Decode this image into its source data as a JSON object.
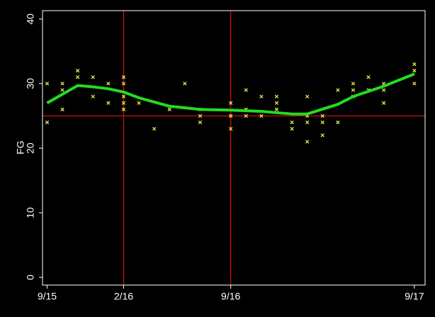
{
  "chart_data": {
    "type": "scatter",
    "y_label": "FG",
    "xlim": [
      -0.3,
      24.7
    ],
    "ylim": [
      -1.2,
      41.3
    ],
    "xticks": [
      {
        "value": 0,
        "label": "9/15"
      },
      {
        "value": 5,
        "label": "2/16"
      },
      {
        "value": 12,
        "label": "9/16"
      },
      {
        "value": 24,
        "label": "9/17"
      }
    ],
    "yticks": [
      0,
      10,
      20,
      30,
      40
    ],
    "points": {
      "color": "#e8e84a",
      "x": [
        0,
        0,
        1,
        1,
        1,
        2,
        2,
        3,
        3,
        4,
        4,
        5,
        5,
        5,
        5,
        5,
        6,
        7,
        8,
        9,
        10,
        10,
        10,
        12,
        12,
        12,
        13,
        13,
        13,
        14,
        14,
        15,
        15,
        15,
        16,
        16,
        17,
        17,
        17,
        17,
        18,
        18,
        18,
        19,
        19,
        20,
        20,
        20,
        21,
        21,
        22,
        22,
        22,
        24,
        24,
        24
      ],
      "y": [
        30,
        24,
        30,
        29,
        26,
        32,
        31,
        31,
        28,
        30,
        27,
        31,
        30,
        28,
        27,
        26,
        27,
        23,
        26,
        30,
        26,
        25,
        24,
        27,
        25,
        23,
        29,
        26,
        25,
        28,
        25,
        28,
        27,
        26,
        24,
        23,
        28,
        25,
        24,
        21,
        25,
        24,
        22,
        29,
        24,
        30,
        29,
        28,
        31,
        29,
        30,
        29,
        27,
        33,
        32,
        30
      ]
    },
    "fit": {
      "color": "#22dd22",
      "x": [
        0,
        2,
        3,
        4,
        5,
        6,
        8,
        10,
        12,
        14,
        16,
        17,
        19,
        20,
        22,
        24
      ],
      "y": [
        27,
        29.7,
        29.5,
        29.2,
        28.7,
        27.8,
        26.5,
        26,
        25.9,
        25.7,
        25.3,
        25.3,
        26.8,
        28,
        29.6,
        31.5
      ]
    },
    "reference": {
      "color": "#dd1111",
      "y": [
        25
      ],
      "x": [
        5,
        12
      ]
    }
  }
}
